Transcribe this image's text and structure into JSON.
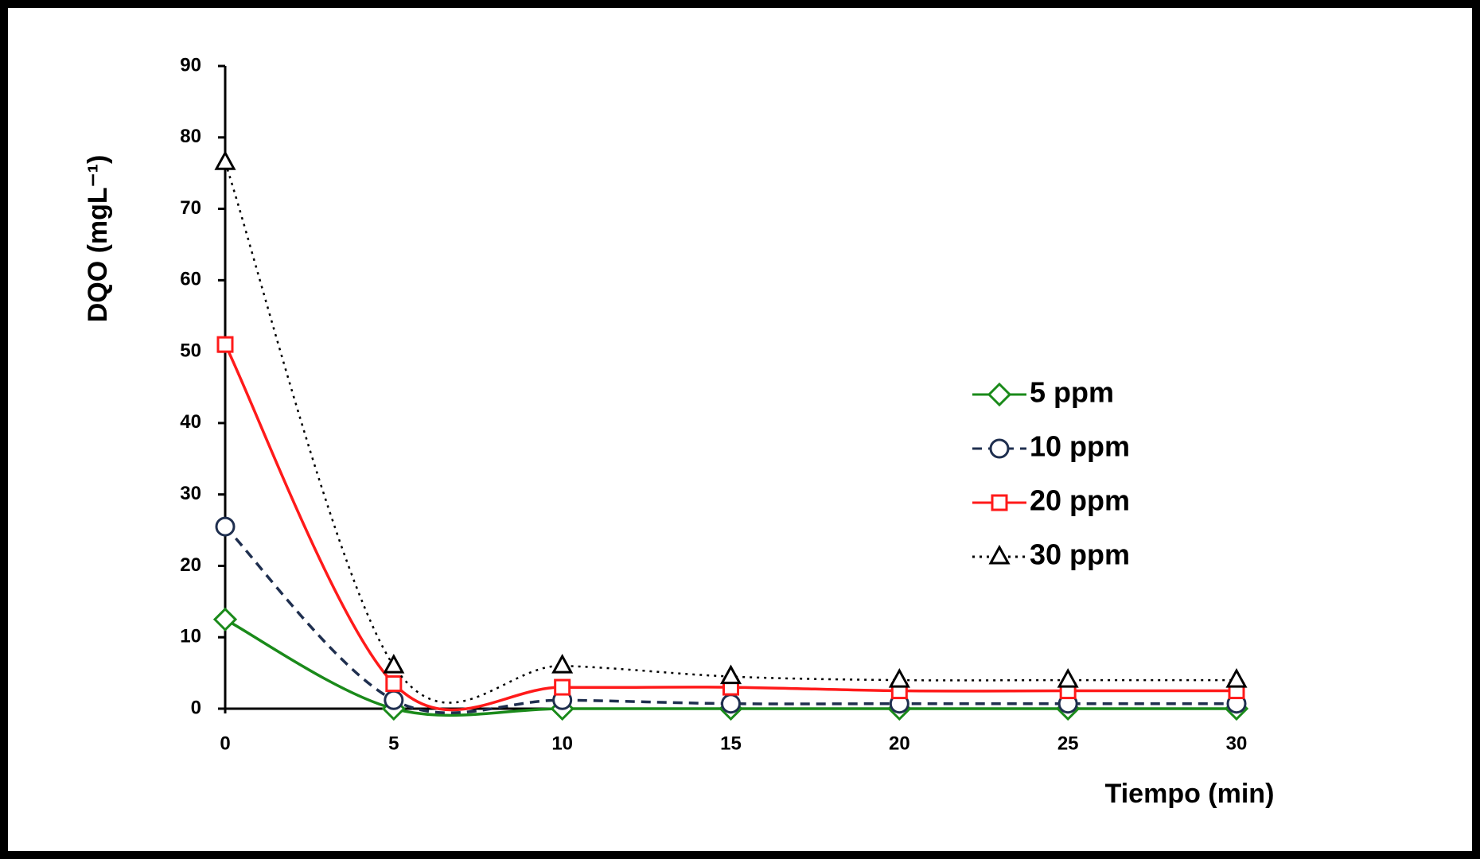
{
  "chart_data": {
    "type": "line",
    "x_label": "Tiempo (min)",
    "y_label": "DQO (mgL⁻¹)",
    "x": [
      0,
      5,
      10,
      15,
      20,
      25,
      30
    ],
    "xlim": [
      0,
      30
    ],
    "xticks": [
      0,
      5,
      10,
      15,
      20,
      25,
      30
    ],
    "ylim": [
      0,
      90
    ],
    "yticks": [
      0,
      10,
      20,
      30,
      40,
      50,
      60,
      70,
      80,
      90
    ],
    "grid": false,
    "smooth": true,
    "legend": "right",
    "series": [
      {
        "name": "5 ppm",
        "color": "#1a8a1a",
        "dash": "solid",
        "marker": "diamond",
        "values": [
          12.5,
          0,
          0,
          0,
          0,
          0,
          0
        ]
      },
      {
        "name": "10 ppm",
        "color": "#1f2f4f",
        "dash": "dashed",
        "marker": "circle",
        "values": [
          25.5,
          1.2,
          1.2,
          0.7,
          0.7,
          0.7,
          0.7
        ]
      },
      {
        "name": "20 ppm",
        "color": "#ff1a1a",
        "dash": "solid",
        "marker": "square",
        "values": [
          51,
          3.5,
          3,
          3,
          2.5,
          2.5,
          2.5
        ]
      },
      {
        "name": "30 ppm",
        "color": "#000000",
        "dash": "dotted",
        "marker": "triangle",
        "values": [
          76.5,
          6,
          6,
          4.5,
          4,
          4,
          4
        ]
      }
    ]
  }
}
